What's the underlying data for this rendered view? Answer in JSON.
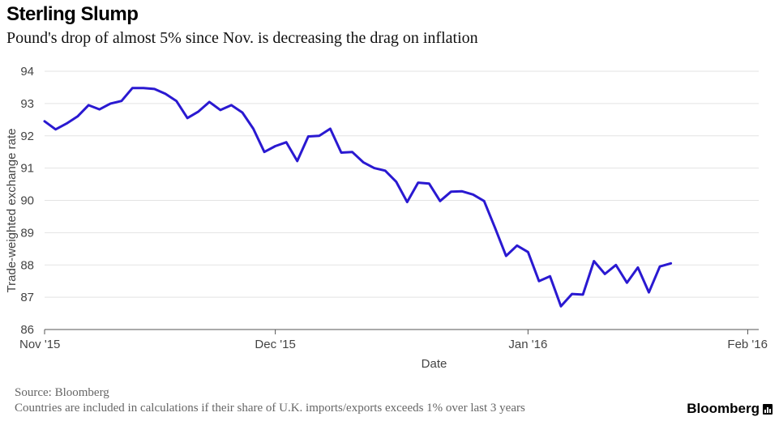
{
  "header": {
    "title": "Sterling Slump",
    "subtitle": "Pound's drop of almost 5% since Nov. is decreasing the drag on inflation"
  },
  "footer": {
    "source": "Source: Bloomberg",
    "note": "Countries are included in calculations if their share of U.K. imports/exports exceeds 1% over last 3 years",
    "brand": "Bloomberg"
  },
  "colors": {
    "line": "#2a19d1",
    "grid": "#e3e3e3",
    "axis": "#555555"
  },
  "chart_data": {
    "type": "line",
    "title": "Sterling Slump",
    "xlabel": "Date",
    "ylabel": "Trade-weighted exchange rate",
    "ylim": [
      86,
      94
    ],
    "yticks": [
      86,
      87,
      88,
      89,
      90,
      91,
      92,
      93,
      94
    ],
    "xlim": [
      0,
      65
    ],
    "xticks": [
      {
        "x": 0,
        "label": "Nov '15"
      },
      {
        "x": 21,
        "label": "Dec '15"
      },
      {
        "x": 44,
        "label": "Jan '16"
      },
      {
        "x": 64,
        "label": "Feb '16"
      }
    ],
    "grid": true,
    "series": [
      {
        "name": "Trade-weighted exchange rate",
        "x": [
          0,
          1,
          2,
          3,
          4,
          5,
          6,
          7,
          8,
          9,
          10,
          11,
          12,
          13,
          14,
          15,
          16,
          17,
          18,
          19,
          20,
          21,
          22,
          23,
          24,
          25,
          26,
          27,
          28,
          29,
          30,
          31,
          32,
          33,
          34,
          35,
          36,
          37,
          38,
          39,
          40,
          41,
          42,
          43,
          44,
          45,
          46,
          47,
          48,
          49,
          50,
          51,
          52,
          53,
          54,
          55,
          56,
          57,
          58,
          59,
          60,
          61,
          62,
          63,
          64,
          65
        ],
        "values": [
          92.45,
          92.2,
          92.38,
          92.6,
          92.95,
          92.82,
          93.0,
          93.08,
          93.48,
          93.48,
          93.45,
          93.3,
          93.08,
          92.55,
          92.75,
          93.05,
          92.8,
          92.95,
          92.72,
          92.22,
          91.5,
          91.68,
          91.8,
          91.22,
          91.98,
          92.0,
          92.22,
          91.48,
          91.5,
          91.18,
          91.0,
          90.92,
          90.58,
          89.95,
          90.55,
          90.52,
          89.98,
          90.27,
          90.28,
          90.18,
          89.98,
          89.15,
          88.28,
          88.6,
          88.4,
          87.5,
          87.65,
          86.72,
          87.1,
          87.08,
          88.12,
          87.72,
          88.0,
          87.45,
          87.92,
          87.15,
          87.95,
          88.05,
          null,
          null,
          null,
          null,
          null,
          null,
          null,
          null
        ]
      }
    ]
  }
}
